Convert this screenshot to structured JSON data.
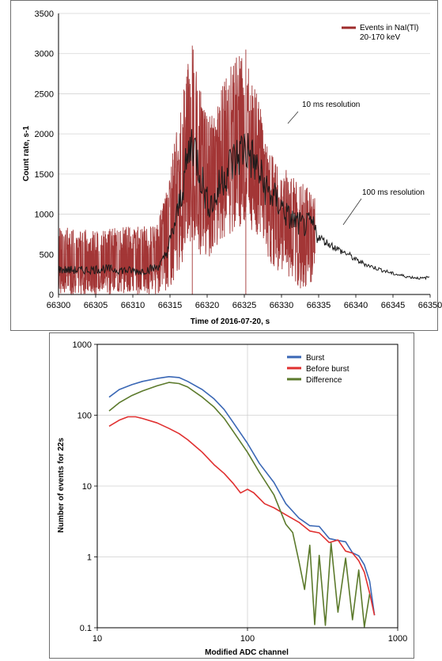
{
  "chart_data": [
    {
      "type": "line",
      "title": "",
      "xlabel": "Time of 2016-07-20, s",
      "ylabel": "Count rate, s-1",
      "xlim": [
        66300,
        66350
      ],
      "ylim": [
        0,
        3500
      ],
      "x_ticks": [
        "66300",
        "66305",
        "66310",
        "66315",
        "66320",
        "66325",
        "66330",
        "66335",
        "66340",
        "66345",
        "66350"
      ],
      "y_ticks": [
        "0",
        "500",
        "1000",
        "1500",
        "2000",
        "2500",
        "3000",
        "3500"
      ],
      "grid": true,
      "legend": {
        "placement": "top-right",
        "entries": [
          "Events in NaI(Tl)\n20-170 keV"
        ]
      },
      "annotations": [
        "10 ms resolution",
        "100 ms resolution"
      ],
      "series": [
        {
          "name": "Events in NaI(Tl) 20-170 keV",
          "resolution": "10 ms",
          "color": "#9e2b2b",
          "envelope_x": [
            66300,
            66305,
            66310,
            66313,
            66314.5,
            66316,
            66317,
            66318,
            66319,
            66320,
            66321,
            66322,
            66323,
            66324,
            66325,
            66326,
            66327,
            66328,
            66329,
            66330,
            66331,
            66332,
            66333,
            66334.5
          ],
          "envelope_low": [
            0,
            0,
            0,
            0,
            50,
            150,
            500,
            700,
            400,
            400,
            600,
            650,
            700,
            800,
            900,
            800,
            700,
            500,
            300,
            300,
            200,
            100,
            0,
            200
          ],
          "envelope_high": [
            850,
            800,
            850,
            850,
            1300,
            2100,
            2700,
            3100,
            2700,
            2200,
            2300,
            2600,
            2800,
            3000,
            3000,
            2700,
            2400,
            1900,
            1700,
            1500,
            1600,
            1400,
            1400,
            1300
          ],
          "peak_values": [
            {
              "x": 66318.0,
              "y": 3100
            },
            {
              "x": 66325.2,
              "y": 3050
            }
          ]
        },
        {
          "name": "",
          "resolution": "100 ms",
          "color": "#1a1a1a",
          "x": [
            66300,
            66303,
            66306,
            66309,
            66311,
            66313,
            66314,
            66315,
            66316,
            66317,
            66318,
            66319,
            66320,
            66321,
            66322,
            66323,
            66324,
            66325,
            66326,
            66327,
            66328,
            66329,
            66330,
            66331,
            66332,
            66333,
            66334,
            66335,
            66336,
            66337,
            66338,
            66339,
            66340,
            66341,
            66342,
            66343,
            66344,
            66345,
            66346,
            66347,
            66348,
            66349,
            66350
          ],
          "y": [
            310,
            300,
            320,
            300,
            290,
            330,
            400,
            650,
            1000,
            1500,
            1950,
            1550,
            1150,
            1150,
            1450,
            1600,
            1700,
            1850,
            1700,
            1500,
            1300,
            1200,
            1100,
            950,
            900,
            850,
            880,
            720,
            650,
            600,
            540,
            500,
            430,
            390,
            350,
            320,
            290,
            260,
            240,
            220,
            210,
            200,
            220
          ]
        }
      ]
    },
    {
      "type": "line",
      "title": "",
      "xlabel": "Modified ADC channel",
      "ylabel": "Number of events for 22s",
      "xscale": "log",
      "yscale": "log",
      "xlim": [
        10,
        1000
      ],
      "ylim": [
        0.1,
        1000
      ],
      "x_ticks": [
        "10",
        "100",
        "1000"
      ],
      "y_ticks": [
        "0.1",
        "1",
        "10",
        "100",
        "1000"
      ],
      "grid": true,
      "legend": {
        "placement": "top-right",
        "entries": [
          "Burst",
          "Before burst",
          "Difference"
        ]
      },
      "series": [
        {
          "name": "Burst",
          "color": "#3a67b5",
          "x": [
            12,
            14,
            17,
            20,
            25,
            30,
            35,
            40,
            50,
            60,
            70,
            80,
            100,
            120,
            150,
            180,
            220,
            260,
            300,
            350,
            400,
            450,
            500,
            550,
            600,
            650,
            700
          ],
          "y": [
            180,
            230,
            270,
            300,
            330,
            350,
            340,
            300,
            230,
            170,
            120,
            80,
            40,
            20,
            10,
            6,
            4,
            3,
            2.5,
            2,
            1.8,
            1.5,
            1.2,
            1.0,
            0.7,
            0.4,
            0.15
          ]
        },
        {
          "name": "Before burst",
          "color": "#e03030",
          "x": [
            12,
            14,
            16,
            18,
            20,
            25,
            30,
            35,
            40,
            50,
            60,
            70,
            80,
            90,
            100,
            110,
            130,
            150,
            180,
            220,
            260,
            300,
            350,
            400,
            450,
            500,
            550,
            600,
            650,
            700
          ],
          "y": [
            70,
            85,
            95,
            95,
            90,
            78,
            65,
            55,
            45,
            30,
            20,
            15,
            11,
            8,
            9,
            8,
            6,
            5,
            4,
            3,
            2.5,
            2,
            1.8,
            1.6,
            1.4,
            1.2,
            0.9,
            0.6,
            0.3,
            0.15
          ]
        },
        {
          "name": "Difference",
          "color": "#5c7a2c",
          "x": [
            12,
            14,
            17,
            20,
            25,
            30,
            35,
            40,
            50,
            60,
            70,
            80,
            100,
            120,
            150,
            180,
            200,
            220,
            240,
            260,
            280,
            300,
            330,
            360,
            400,
            450,
            500,
            550,
            600,
            650
          ],
          "y": [
            115,
            150,
            190,
            220,
            260,
            290,
            280,
            250,
            180,
            130,
            90,
            60,
            30,
            15,
            7,
            3,
            2,
            1,
            0.4,
            1.5,
            0.1,
            1.2,
            0.1,
            1.5,
            0.15,
            1.0,
            0.12,
            0.6,
            0.1,
            0.3
          ]
        }
      ]
    }
  ]
}
